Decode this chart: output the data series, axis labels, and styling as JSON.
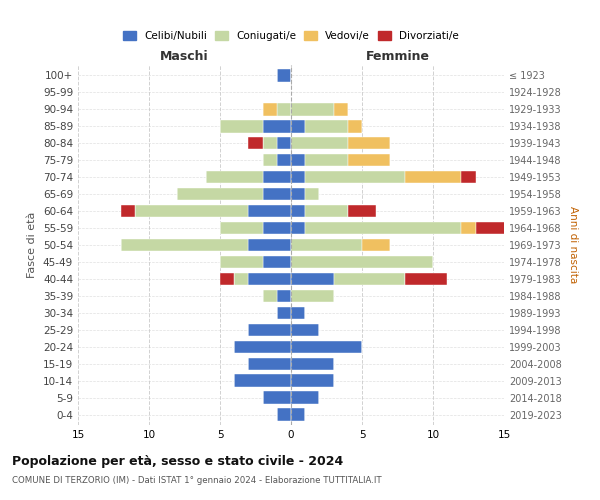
{
  "age_groups": [
    "0-4",
    "5-9",
    "10-14",
    "15-19",
    "20-24",
    "25-29",
    "30-34",
    "35-39",
    "40-44",
    "45-49",
    "50-54",
    "55-59",
    "60-64",
    "65-69",
    "70-74",
    "75-79",
    "80-84",
    "85-89",
    "90-94",
    "95-99",
    "100+"
  ],
  "birth_years": [
    "2019-2023",
    "2014-2018",
    "2009-2013",
    "2004-2008",
    "1999-2003",
    "1994-1998",
    "1989-1993",
    "1984-1988",
    "1979-1983",
    "1974-1978",
    "1969-1973",
    "1964-1968",
    "1959-1963",
    "1954-1958",
    "1949-1953",
    "1944-1948",
    "1939-1943",
    "1934-1938",
    "1929-1933",
    "1924-1928",
    "≤ 1923"
  ],
  "colors": {
    "celibi": "#4472c4",
    "coniugati": "#c5d8a4",
    "vedovi": "#f0c060",
    "divorziati": "#c0292b"
  },
  "maschi": {
    "celibi": [
      1,
      2,
      4,
      3,
      4,
      3,
      1,
      1,
      3,
      2,
      3,
      2,
      3,
      2,
      2,
      1,
      1,
      2,
      0,
      0,
      1
    ],
    "coniugati": [
      0,
      0,
      0,
      0,
      0,
      0,
      0,
      1,
      1,
      3,
      9,
      3,
      8,
      6,
      4,
      1,
      1,
      3,
      1,
      0,
      0
    ],
    "vedovi": [
      0,
      0,
      0,
      0,
      0,
      0,
      0,
      0,
      0,
      0,
      0,
      0,
      0,
      0,
      0,
      0,
      0,
      0,
      1,
      0,
      0
    ],
    "divorziati": [
      0,
      0,
      0,
      0,
      0,
      0,
      0,
      0,
      1,
      0,
      0,
      0,
      1,
      0,
      0,
      0,
      1,
      0,
      0,
      0,
      0
    ]
  },
  "femmine": {
    "celibi": [
      1,
      2,
      3,
      3,
      5,
      2,
      1,
      0,
      3,
      0,
      0,
      1,
      1,
      1,
      1,
      1,
      0,
      1,
      0,
      0,
      0
    ],
    "coniugati": [
      0,
      0,
      0,
      0,
      0,
      0,
      0,
      3,
      5,
      10,
      5,
      11,
      3,
      1,
      7,
      3,
      4,
      3,
      3,
      0,
      0
    ],
    "vedovi": [
      0,
      0,
      0,
      0,
      0,
      0,
      0,
      0,
      0,
      0,
      2,
      1,
      0,
      0,
      4,
      3,
      3,
      1,
      1,
      0,
      0
    ],
    "divorziati": [
      0,
      0,
      0,
      0,
      0,
      0,
      0,
      0,
      3,
      0,
      0,
      3,
      2,
      0,
      1,
      0,
      0,
      0,
      0,
      0,
      0
    ]
  },
  "title": "Popolazione per età, sesso e stato civile - 2024",
  "subtitle": "COMUNE DI TERZORIO (IM) - Dati ISTAT 1° gennaio 2024 - Elaborazione TUTTITALIA.IT",
  "xlabel_left": "Maschi",
  "xlabel_right": "Femmine",
  "ylabel_left": "Fasce di età",
  "ylabel_right": "Anni di nascita",
  "legend_labels": [
    "Celibi/Nubili",
    "Coniugati/e",
    "Vedovi/e",
    "Divorziati/e"
  ],
  "xlim": 15,
  "background_color": "#ffffff",
  "grid_color": "#cccccc"
}
